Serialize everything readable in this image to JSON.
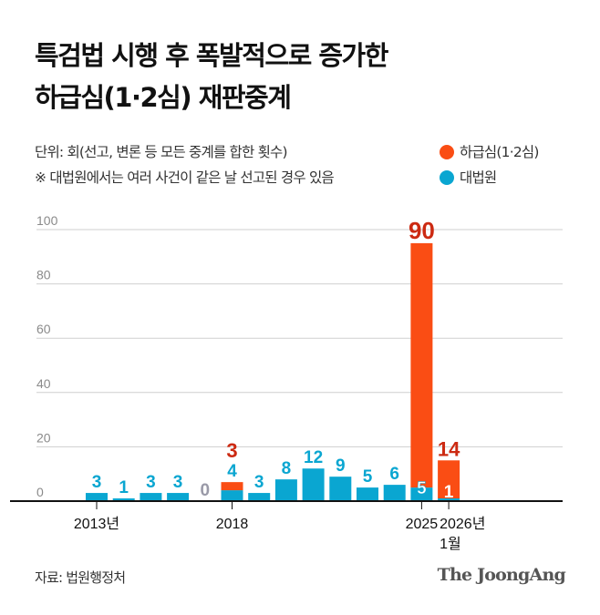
{
  "title_line1": "특검법 시행 후 폭발적으로 증가한",
  "title_line2": "하급심(1·2심) 재판중계",
  "unit_note": "단위: 회(선고, 변론 등 모든 중계를 합한 횟수)",
  "footnote": "※ 대법원에서는 여러 사건이 같은 날 선고된 경우 있음",
  "source": "자료: 법원행정처",
  "logo": "The JoongAng",
  "colors": {
    "lower_court": "#fa4d14",
    "supreme_court": "#0aa6d1",
    "lower_label": "#cc2a12",
    "zero_label": "#9a9aa8"
  },
  "chart_data": {
    "type": "bar",
    "stacked": true,
    "categories": [
      "2013",
      "2014",
      "2015",
      "2016",
      "2017",
      "2018",
      "2019",
      "2020",
      "2021",
      "2022",
      "2023",
      "2024",
      "2025",
      "2026-01"
    ],
    "tick_labels": [
      {
        "category": "2013",
        "lines": [
          "2013년"
        ]
      },
      {
        "category": "2018",
        "lines": [
          "2018"
        ]
      },
      {
        "category": "2025",
        "lines": [
          "2025"
        ]
      },
      {
        "category": "2026-01",
        "lines": [
          "2026년",
          "1월"
        ]
      }
    ],
    "series": [
      {
        "name": "대법원",
        "color": "#0aa6d1",
        "values": [
          3,
          1,
          3,
          3,
          0,
          4,
          3,
          8,
          12,
          9,
          5,
          6,
          5,
          1
        ]
      },
      {
        "name": "하급심(1·2심)",
        "color": "#fa4d14",
        "values": [
          0,
          0,
          0,
          0,
          0,
          3,
          0,
          0,
          0,
          0,
          0,
          0,
          90,
          14
        ]
      }
    ],
    "ylim": [
      0,
      100
    ],
    "yticks": [
      "0",
      "20",
      "40",
      "60",
      "80",
      "100"
    ],
    "grid": true,
    "legend_position": "top-right"
  }
}
